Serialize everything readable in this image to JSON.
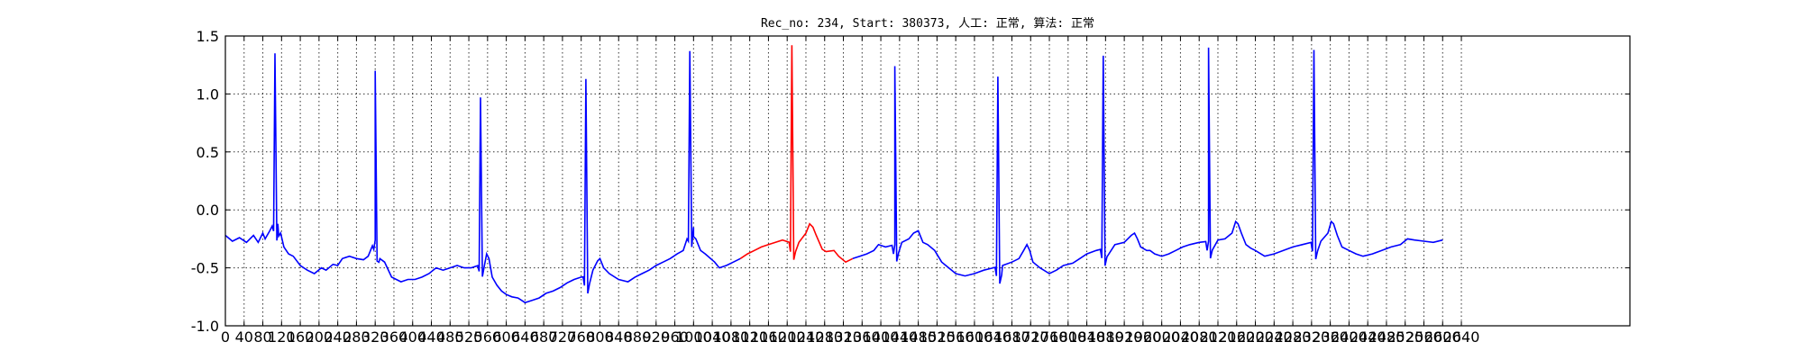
{
  "chart_data": {
    "type": "line",
    "title": "Rec_no: 234, Start: 380373, 人工: 正常, 算法: 正常",
    "xlabel": "",
    "ylabel": "",
    "xlim": [
      0,
      3000
    ],
    "ylim": [
      -1.0,
      1.5
    ],
    "grid": true,
    "ytick_labels": [
      "1.5",
      "1.0",
      "0.5",
      "0.0",
      "-0.5",
      "-1.0"
    ],
    "ytick_values": [
      1.5,
      1.0,
      0.5,
      0.0,
      -0.5,
      -1.0
    ],
    "xtick_values": [
      0,
      40,
      80,
      120,
      160,
      200,
      240,
      280,
      320,
      360,
      400,
      440,
      480,
      520,
      560,
      600,
      640,
      680,
      720,
      760,
      800,
      840,
      880,
      920,
      960,
      1000,
      1040,
      1080,
      1120,
      1160,
      1200,
      1240,
      1280,
      1320,
      1360,
      1400,
      1440,
      1480,
      1520,
      1560,
      1600,
      1640,
      1680,
      1720,
      1760,
      1800,
      1840,
      1880,
      1920,
      1960,
      2000,
      2040,
      2080,
      2120,
      2160,
      2200,
      2240,
      2280,
      2320,
      2360,
      2400,
      2440,
      2480,
      2520,
      2560,
      2600,
      2640
    ],
    "xtick_labels": [
      "0",
      "40",
      "80",
      "120",
      "160",
      "200",
      "240",
      "280",
      "320",
      "360",
      "400",
      "440",
      "480",
      "520",
      "560",
      "600",
      "640",
      "680",
      "720",
      "760",
      "800",
      "840",
      "880",
      "920",
      "960",
      "1000",
      "1040",
      "1080",
      "1120",
      "1160",
      "1200",
      "1240",
      "1280",
      "1320",
      "1360",
      "1400",
      "1440",
      "1480",
      "1520",
      "1560",
      "1600",
      "1640",
      "1680",
      "1720",
      "1760",
      "1800",
      "1840",
      "1880",
      "1920",
      "1960",
      "2000",
      "2040",
      "2080",
      "2120",
      "2160",
      "2200",
      "2240",
      "2280",
      "2320",
      "2360",
      "2400",
      "2440",
      "2480",
      "2520",
      "2560",
      "2600",
      "2640"
    ],
    "baseline_points": [
      [
        0,
        -0.22
      ],
      [
        15,
        -0.27
      ],
      [
        30,
        -0.24
      ],
      [
        45,
        -0.28
      ],
      [
        60,
        -0.22
      ],
      [
        70,
        -0.28
      ],
      [
        80,
        -0.2
      ],
      [
        85,
        -0.25
      ],
      [
        95,
        -0.18
      ],
      [
        105,
        -0.1
      ],
      [
        112,
        -0.12
      ],
      [
        118,
        -0.2
      ],
      [
        125,
        -0.32
      ],
      [
        135,
        -0.38
      ],
      [
        145,
        -0.4
      ],
      [
        160,
        -0.48
      ],
      [
        175,
        -0.52
      ],
      [
        190,
        -0.55
      ],
      [
        205,
        -0.5
      ],
      [
        215,
        -0.52
      ],
      [
        230,
        -0.47
      ],
      [
        240,
        -0.48
      ],
      [
        250,
        -0.42
      ],
      [
        265,
        -0.4
      ],
      [
        280,
        -0.42
      ],
      [
        295,
        -0.43
      ],
      [
        305,
        -0.4
      ],
      [
        315,
        -0.3
      ],
      [
        320,
        -0.26
      ],
      [
        325,
        -0.3
      ],
      [
        330,
        -0.42
      ],
      [
        340,
        -0.45
      ],
      [
        355,
        -0.58
      ],
      [
        365,
        -0.6
      ],
      [
        375,
        -0.62
      ],
      [
        390,
        -0.6
      ],
      [
        405,
        -0.6
      ],
      [
        420,
        -0.58
      ],
      [
        435,
        -0.55
      ],
      [
        450,
        -0.5
      ],
      [
        465,
        -0.52
      ],
      [
        480,
        -0.5
      ],
      [
        495,
        -0.48
      ],
      [
        510,
        -0.5
      ],
      [
        525,
        -0.5
      ],
      [
        540,
        -0.48
      ],
      [
        550,
        -0.42
      ],
      [
        558,
        -0.38
      ],
      [
        563,
        -0.42
      ],
      [
        570,
        -0.58
      ],
      [
        580,
        -0.65
      ],
      [
        590,
        -0.7
      ],
      [
        600,
        -0.73
      ],
      [
        612,
        -0.75
      ],
      [
        625,
        -0.76
      ],
      [
        640,
        -0.8
      ],
      [
        655,
        -0.78
      ],
      [
        670,
        -0.76
      ],
      [
        685,
        -0.72
      ],
      [
        700,
        -0.7
      ],
      [
        715,
        -0.67
      ],
      [
        730,
        -0.63
      ],
      [
        745,
        -0.6
      ],
      [
        760,
        -0.58
      ],
      [
        775,
        -0.57
      ],
      [
        785,
        -0.52
      ],
      [
        795,
        -0.44
      ],
      [
        800,
        -0.42
      ],
      [
        808,
        -0.5
      ],
      [
        820,
        -0.55
      ],
      [
        840,
        -0.6
      ],
      [
        860,
        -0.62
      ],
      [
        875,
        -0.58
      ],
      [
        890,
        -0.55
      ],
      [
        905,
        -0.52
      ],
      [
        920,
        -0.48
      ],
      [
        935,
        -0.45
      ],
      [
        950,
        -0.42
      ],
      [
        965,
        -0.38
      ],
      [
        978,
        -0.35
      ],
      [
        990,
        -0.2
      ],
      [
        1000,
        -0.15
      ],
      [
        1005,
        -0.25
      ],
      [
        1015,
        -0.35
      ],
      [
        1025,
        -0.38
      ],
      [
        1045,
        -0.45
      ],
      [
        1055,
        -0.5
      ],
      [
        1070,
        -0.48
      ],
      [
        1085,
        -0.45
      ],
      [
        1100,
        -0.42
      ],
      [
        1115,
        -0.38
      ],
      [
        1130,
        -0.35
      ],
      [
        1145,
        -0.32
      ],
      [
        1160,
        -0.3
      ],
      [
        1175,
        -0.28
      ],
      [
        1190,
        -0.26
      ],
      [
        1205,
        -0.28
      ],
      [
        1225,
        -0.28
      ],
      [
        1240,
        -0.2
      ],
      [
        1248,
        -0.12
      ],
      [
        1255,
        -0.15
      ],
      [
        1262,
        -0.22
      ],
      [
        1275,
        -0.34
      ],
      [
        1283,
        -0.36
      ],
      [
        1300,
        -0.35
      ],
      [
        1310,
        -0.4
      ],
      [
        1325,
        -0.45
      ],
      [
        1340,
        -0.42
      ],
      [
        1355,
        -0.4
      ],
      [
        1370,
        -0.38
      ],
      [
        1385,
        -0.35
      ],
      [
        1395,
        -0.3
      ],
      [
        1410,
        -0.32
      ],
      [
        1430,
        -0.3
      ],
      [
        1445,
        -0.28
      ],
      [
        1460,
        -0.25
      ],
      [
        1470,
        -0.2
      ],
      [
        1480,
        -0.18
      ],
      [
        1490,
        -0.28
      ],
      [
        1500,
        -0.3
      ],
      [
        1515,
        -0.35
      ],
      [
        1530,
        -0.45
      ],
      [
        1545,
        -0.5
      ],
      [
        1560,
        -0.55
      ],
      [
        1580,
        -0.57
      ],
      [
        1600,
        -0.55
      ],
      [
        1620,
        -0.52
      ],
      [
        1640,
        -0.5
      ],
      [
        1660,
        -0.48
      ],
      [
        1680,
        -0.45
      ],
      [
        1695,
        -0.42
      ],
      [
        1705,
        -0.35
      ],
      [
        1712,
        -0.3
      ],
      [
        1718,
        -0.35
      ],
      [
        1725,
        -0.45
      ],
      [
        1740,
        -0.5
      ],
      [
        1760,
        -0.55
      ],
      [
        1775,
        -0.52
      ],
      [
        1790,
        -0.48
      ],
      [
        1810,
        -0.46
      ],
      [
        1825,
        -0.42
      ],
      [
        1840,
        -0.38
      ],
      [
        1860,
        -0.35
      ],
      [
        1880,
        -0.33
      ],
      [
        1900,
        -0.3
      ],
      [
        1920,
        -0.28
      ],
      [
        1935,
        -0.22
      ],
      [
        1942,
        -0.2
      ],
      [
        1948,
        -0.25
      ],
      [
        1955,
        -0.32
      ],
      [
        1968,
        -0.35
      ],
      [
        1975,
        -0.35
      ],
      [
        1985,
        -0.38
      ],
      [
        2000,
        -0.4
      ],
      [
        2015,
        -0.38
      ],
      [
        2030,
        -0.35
      ],
      [
        2045,
        -0.32
      ],
      [
        2060,
        -0.3
      ],
      [
        2080,
        -0.28
      ],
      [
        2100,
        -0.27
      ],
      [
        2120,
        -0.26
      ],
      [
        2135,
        -0.25
      ],
      [
        2150,
        -0.2
      ],
      [
        2158,
        -0.1
      ],
      [
        2163,
        -0.12
      ],
      [
        2170,
        -0.2
      ],
      [
        2180,
        -0.3
      ],
      [
        2190,
        -0.33
      ],
      [
        2200,
        -0.35
      ],
      [
        2220,
        -0.4
      ],
      [
        2240,
        -0.38
      ],
      [
        2260,
        -0.35
      ],
      [
        2280,
        -0.32
      ],
      [
        2300,
        -0.3
      ],
      [
        2320,
        -0.28
      ],
      [
        2340,
        -0.27
      ],
      [
        2355,
        -0.2
      ],
      [
        2362,
        -0.1
      ],
      [
        2367,
        -0.12
      ],
      [
        2375,
        -0.22
      ],
      [
        2385,
        -0.32
      ],
      [
        2400,
        -0.35
      ],
      [
        2415,
        -0.38
      ],
      [
        2430,
        -0.4
      ],
      [
        2450,
        -0.38
      ],
      [
        2470,
        -0.35
      ],
      [
        2490,
        -0.32
      ],
      [
        2510,
        -0.3
      ],
      [
        2525,
        -0.25
      ],
      [
        2540,
        -0.26
      ],
      [
        2560,
        -0.27
      ],
      [
        2580,
        -0.28
      ],
      [
        2600,
        -0.26
      ]
    ],
    "beats": [
      {
        "x": 106,
        "peak": 1.35,
        "abnormal": false
      },
      {
        "x": 320,
        "peak": 1.2,
        "abnormal": false
      },
      {
        "x": 545,
        "peak": 0.97,
        "abnormal": false
      },
      {
        "x": 770,
        "peak": 1.13,
        "abnormal": false
      },
      {
        "x": 992,
        "peak": 1.37,
        "abnormal": false
      },
      {
        "x": 1210,
        "peak": 1.42,
        "abnormal": true
      },
      {
        "x": 1430,
        "peak": 1.24,
        "abnormal": false
      },
      {
        "x": 1650,
        "peak": 1.15,
        "abnormal": false
      },
      {
        "x": 1875,
        "peak": 1.33,
        "abnormal": false
      },
      {
        "x": 2100,
        "peak": 1.4,
        "abnormal": false
      },
      {
        "x": 2325,
        "peak": 1.38,
        "abnormal": false
      }
    ],
    "highlight_range": [
      1105,
      1345
    ],
    "series": [
      {
        "color": "#0000ff"
      },
      {
        "color": "#ff0000"
      }
    ]
  }
}
